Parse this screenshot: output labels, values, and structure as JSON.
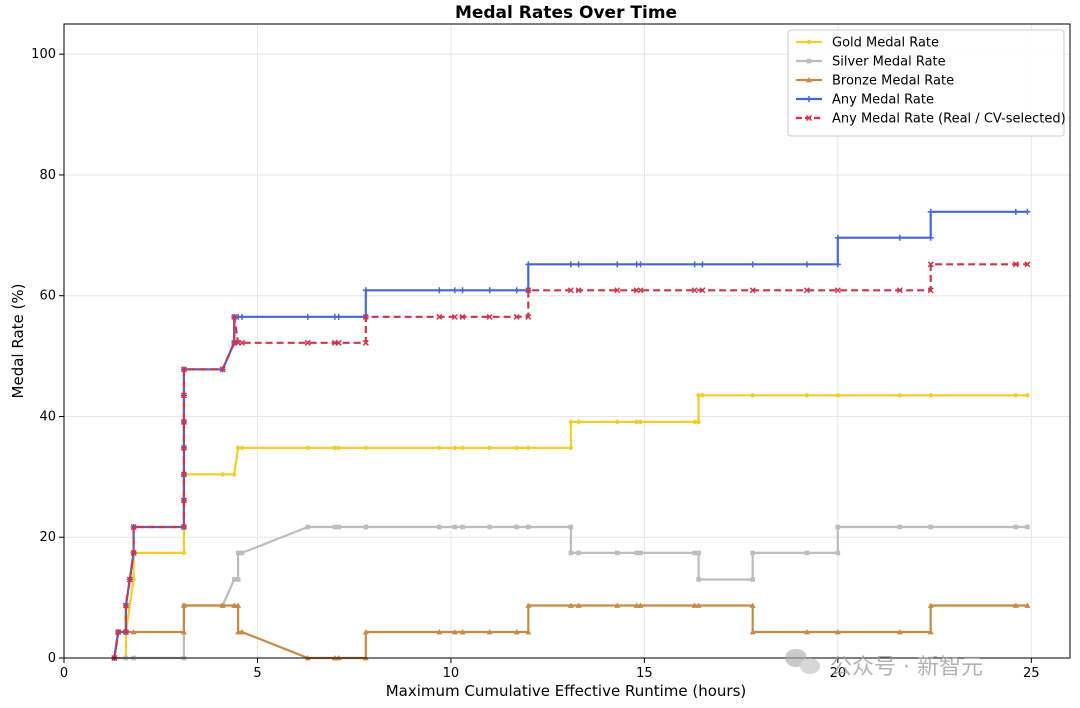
{
  "chart_data": {
    "type": "line",
    "title": "Medal Rates Over Time",
    "xlabel": "Maximum Cumulative Effective Runtime (hours)",
    "ylabel": "Medal Rate (%)",
    "xlim": [
      0,
      26
    ],
    "ylim": [
      0,
      105
    ],
    "xticks": [
      0,
      5,
      10,
      15,
      20,
      25
    ],
    "yticks": [
      0,
      20,
      40,
      60,
      80,
      100
    ],
    "grid": true,
    "legend_position": "top-right",
    "series": [
      {
        "name": "Gold Medal Rate",
        "color": "#f5cc2a",
        "marker": "dot",
        "dashed": false,
        "points": [
          [
            1.3,
            0
          ],
          [
            1.6,
            0
          ],
          [
            1.6,
            4.3
          ],
          [
            1.8,
            13
          ],
          [
            1.8,
            17.4
          ],
          [
            3.1,
            17.4
          ],
          [
            3.1,
            30.4
          ],
          [
            4.1,
            30.4
          ],
          [
            4.4,
            30.4
          ],
          [
            4.5,
            34.8
          ],
          [
            4.6,
            34.8
          ],
          [
            6.3,
            34.8
          ],
          [
            7.0,
            34.8
          ],
          [
            7.1,
            34.8
          ],
          [
            7.8,
            34.8
          ],
          [
            9.7,
            34.8
          ],
          [
            10.1,
            34.8
          ],
          [
            10.3,
            34.8
          ],
          [
            11.0,
            34.8
          ],
          [
            11.7,
            34.8
          ],
          [
            12.0,
            34.8
          ],
          [
            13.1,
            34.8
          ],
          [
            13.1,
            39.1
          ],
          [
            13.3,
            39.1
          ],
          [
            14.3,
            39.1
          ],
          [
            14.8,
            39.1
          ],
          [
            14.9,
            39.1
          ],
          [
            16.3,
            39.1
          ],
          [
            16.4,
            39.1
          ],
          [
            16.4,
            43.5
          ],
          [
            16.5,
            43.5
          ],
          [
            17.8,
            43.5
          ],
          [
            19.2,
            43.5
          ],
          [
            20.0,
            43.5
          ],
          [
            21.6,
            43.5
          ],
          [
            22.4,
            43.5
          ],
          [
            24.6,
            43.5
          ],
          [
            24.9,
            43.5
          ]
        ]
      },
      {
        "name": "Silver Medal Rate",
        "color": "#bdbdbd",
        "marker": "square",
        "dashed": false,
        "points": [
          [
            1.3,
            0
          ],
          [
            1.6,
            0
          ],
          [
            1.8,
            0
          ],
          [
            3.1,
            0
          ],
          [
            3.1,
            8.7
          ],
          [
            4.1,
            8.7
          ],
          [
            4.4,
            13
          ],
          [
            4.5,
            13
          ],
          [
            4.5,
            17.4
          ],
          [
            4.6,
            17.4
          ],
          [
            6.3,
            21.7
          ],
          [
            7.0,
            21.7
          ],
          [
            7.1,
            21.7
          ],
          [
            7.8,
            21.7
          ],
          [
            9.7,
            21.7
          ],
          [
            10.1,
            21.7
          ],
          [
            10.3,
            21.7
          ],
          [
            11.0,
            21.7
          ],
          [
            11.7,
            21.7
          ],
          [
            12.0,
            21.7
          ],
          [
            13.1,
            21.7
          ],
          [
            13.1,
            17.4
          ],
          [
            13.3,
            17.4
          ],
          [
            14.3,
            17.4
          ],
          [
            14.8,
            17.4
          ],
          [
            14.9,
            17.4
          ],
          [
            16.3,
            17.4
          ],
          [
            16.4,
            17.4
          ],
          [
            16.4,
            13
          ],
          [
            17.8,
            13
          ],
          [
            17.8,
            17.4
          ],
          [
            19.2,
            17.4
          ],
          [
            20.0,
            17.4
          ],
          [
            20.0,
            21.7
          ],
          [
            21.6,
            21.7
          ],
          [
            22.4,
            21.7
          ],
          [
            24.6,
            21.7
          ],
          [
            24.9,
            21.7
          ]
        ]
      },
      {
        "name": "Bronze Medal Rate",
        "color": "#c68a45",
        "marker": "triangle",
        "dashed": false,
        "points": [
          [
            1.3,
            0
          ],
          [
            1.4,
            4.3
          ],
          [
            1.8,
            4.3
          ],
          [
            3.1,
            4.3
          ],
          [
            3.1,
            8.7
          ],
          [
            4.1,
            8.7
          ],
          [
            4.4,
            8.7
          ],
          [
            4.5,
            8.7
          ],
          [
            4.5,
            4.3
          ],
          [
            4.6,
            4.3
          ],
          [
            6.3,
            0
          ],
          [
            7.0,
            0
          ],
          [
            7.1,
            0
          ],
          [
            7.8,
            0
          ],
          [
            7.8,
            4.3
          ],
          [
            9.7,
            4.3
          ],
          [
            10.1,
            4.3
          ],
          [
            10.3,
            4.3
          ],
          [
            11.0,
            4.3
          ],
          [
            11.7,
            4.3
          ],
          [
            12.0,
            4.3
          ],
          [
            12.0,
            8.7
          ],
          [
            13.1,
            8.7
          ],
          [
            13.3,
            8.7
          ],
          [
            14.3,
            8.7
          ],
          [
            14.8,
            8.7
          ],
          [
            14.9,
            8.7
          ],
          [
            16.3,
            8.7
          ],
          [
            16.4,
            8.7
          ],
          [
            17.8,
            8.7
          ],
          [
            17.8,
            4.3
          ],
          [
            19.2,
            4.3
          ],
          [
            20.0,
            4.3
          ],
          [
            21.6,
            4.3
          ],
          [
            22.4,
            4.3
          ],
          [
            22.4,
            8.7
          ],
          [
            24.6,
            8.7
          ],
          [
            24.9,
            8.7
          ]
        ]
      },
      {
        "name": "Any Medal Rate",
        "color": "#4466d6",
        "marker": "plus",
        "dashed": false,
        "points": [
          [
            1.3,
            0
          ],
          [
            1.4,
            4.3
          ],
          [
            1.6,
            4.3
          ],
          [
            1.6,
            8.7
          ],
          [
            1.7,
            13
          ],
          [
            1.8,
            17.4
          ],
          [
            1.8,
            21.7
          ],
          [
            3.1,
            21.7
          ],
          [
            3.1,
            26.1
          ],
          [
            3.1,
            30.4
          ],
          [
            3.1,
            34.8
          ],
          [
            3.1,
            39.1
          ],
          [
            3.1,
            43.5
          ],
          [
            3.1,
            47.8
          ],
          [
            4.1,
            47.8
          ],
          [
            4.4,
            52.2
          ],
          [
            4.4,
            56.5
          ],
          [
            4.5,
            56.5
          ],
          [
            4.6,
            56.5
          ],
          [
            6.3,
            56.5
          ],
          [
            7.0,
            56.5
          ],
          [
            7.1,
            56.5
          ],
          [
            7.8,
            56.5
          ],
          [
            7.8,
            60.9
          ],
          [
            9.7,
            60.9
          ],
          [
            10.1,
            60.9
          ],
          [
            10.3,
            60.9
          ],
          [
            11.0,
            60.9
          ],
          [
            11.7,
            60.9
          ],
          [
            12.0,
            60.9
          ],
          [
            12.0,
            65.2
          ],
          [
            13.1,
            65.2
          ],
          [
            13.3,
            65.2
          ],
          [
            14.3,
            65.2
          ],
          [
            14.8,
            65.2
          ],
          [
            14.9,
            65.2
          ],
          [
            16.3,
            65.2
          ],
          [
            16.5,
            65.2
          ],
          [
            17.8,
            65.2
          ],
          [
            19.2,
            65.2
          ],
          [
            20.0,
            65.2
          ],
          [
            20.0,
            69.6
          ],
          [
            21.6,
            69.6
          ],
          [
            22.4,
            69.6
          ],
          [
            22.4,
            73.9
          ],
          [
            24.6,
            73.9
          ],
          [
            24.9,
            73.9
          ]
        ]
      },
      {
        "name": "Any Medal Rate (Real / CV-selected)",
        "color": "#d0344a",
        "marker": "x",
        "dashed": true,
        "points": [
          [
            1.3,
            0
          ],
          [
            1.4,
            4.3
          ],
          [
            1.6,
            4.3
          ],
          [
            1.6,
            8.7
          ],
          [
            1.7,
            13
          ],
          [
            1.8,
            17.4
          ],
          [
            1.8,
            21.7
          ],
          [
            3.1,
            21.7
          ],
          [
            3.1,
            26.1
          ],
          [
            3.1,
            30.4
          ],
          [
            3.1,
            34.8
          ],
          [
            3.1,
            39.1
          ],
          [
            3.1,
            43.5
          ],
          [
            3.1,
            47.8
          ],
          [
            4.1,
            47.8
          ],
          [
            4.4,
            52.2
          ],
          [
            4.4,
            56.5
          ],
          [
            4.5,
            52.2
          ],
          [
            4.6,
            52.2
          ],
          [
            6.3,
            52.2
          ],
          [
            7.0,
            52.2
          ],
          [
            7.1,
            52.2
          ],
          [
            7.8,
            52.2
          ],
          [
            7.8,
            56.5
          ],
          [
            9.7,
            56.5
          ],
          [
            10.1,
            56.5
          ],
          [
            10.3,
            56.5
          ],
          [
            11.0,
            56.5
          ],
          [
            11.7,
            56.5
          ],
          [
            12.0,
            56.5
          ],
          [
            12.0,
            60.9
          ],
          [
            13.1,
            60.9
          ],
          [
            13.3,
            60.9
          ],
          [
            14.3,
            60.9
          ],
          [
            14.8,
            60.9
          ],
          [
            14.9,
            60.9
          ],
          [
            16.3,
            60.9
          ],
          [
            16.5,
            60.9
          ],
          [
            17.8,
            60.9
          ],
          [
            19.2,
            60.9
          ],
          [
            20.0,
            60.9
          ],
          [
            21.6,
            60.9
          ],
          [
            22.4,
            60.9
          ],
          [
            22.4,
            65.2
          ],
          [
            24.6,
            65.2
          ],
          [
            24.9,
            65.2
          ]
        ]
      }
    ]
  },
  "watermark": {
    "text": "公众号 · 新智元"
  }
}
